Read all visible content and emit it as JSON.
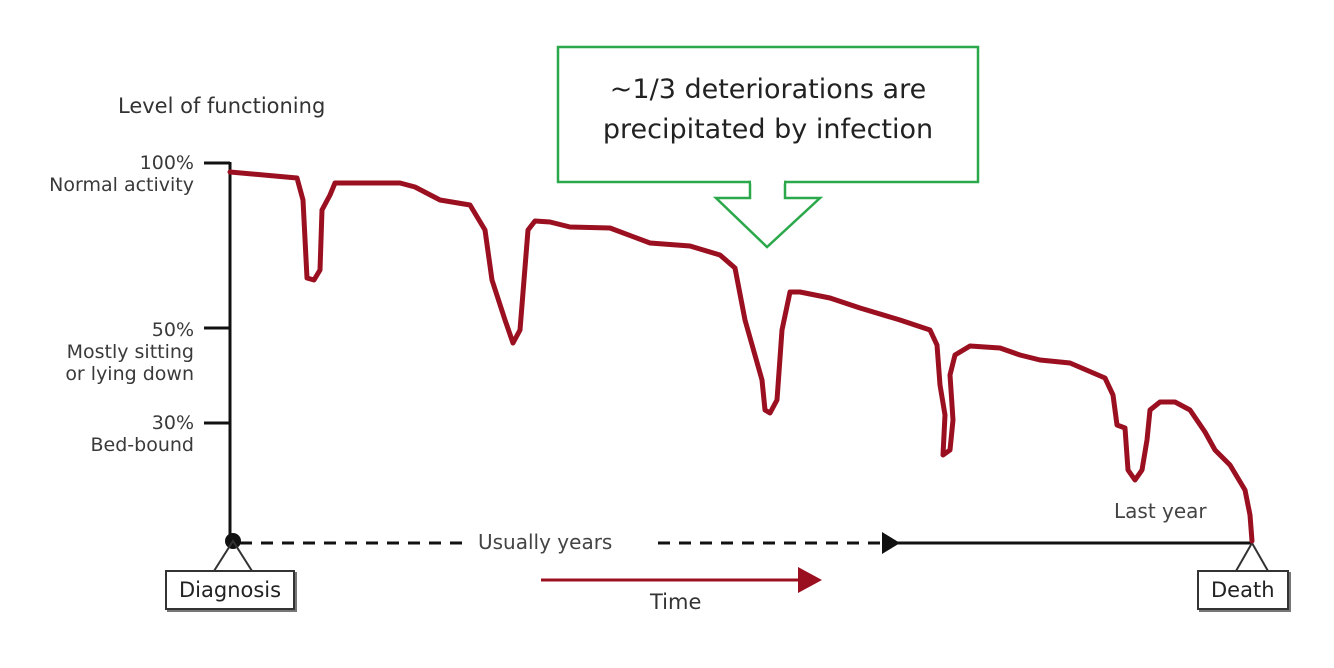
{
  "title": "Level of functioning",
  "y_levels": [
    {
      "value": "100%",
      "label": "Normal activity"
    },
    {
      "value": "50%",
      "label": "Mostly sitting",
      "label2": "or lying down"
    },
    {
      "value": "30%",
      "label": "Bed-bound"
    }
  ],
  "callout": {
    "line1": "~1/3 deteriorations are",
    "line2": "precipitated by infection"
  },
  "timeline": {
    "start": "Diagnosis",
    "end": "Death",
    "middle": "Usually years",
    "last": "Last year",
    "axis": "Time"
  },
  "colors": {
    "curve": "#9b1020",
    "callout_border": "#2aa84a",
    "axis": "#111111"
  }
}
